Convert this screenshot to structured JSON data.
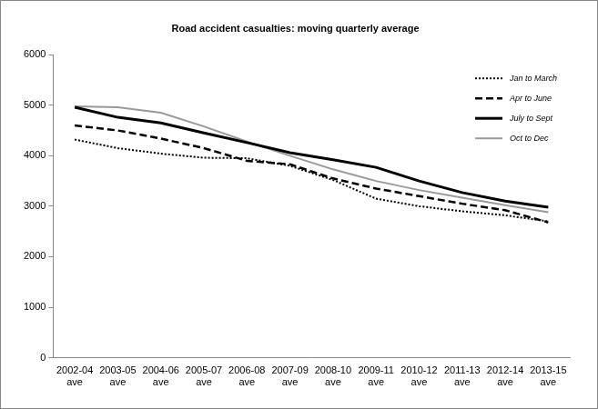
{
  "chart_data": {
    "type": "line",
    "title": "Road accident casualties: moving quarterly average",
    "categories": [
      "2002-04 ave",
      "2003-05 ave",
      "2004-06 ave",
      "2005-07 ave",
      "2006-08 ave",
      "2007-09 ave",
      "2008-10 ave",
      "2009-11 ave",
      "2010-12 ave",
      "2011-13 ave",
      "2012-14 ave",
      "2013-15 ave"
    ],
    "series": [
      {
        "name": "Jan to March",
        "color": "#000000",
        "line_style": "dotted",
        "values": [
          4320,
          4150,
          4040,
          3960,
          3950,
          3800,
          3520,
          3150,
          3000,
          2900,
          2820,
          2700
        ]
      },
      {
        "name": "Apr to June",
        "color": "#000000",
        "line_style": "dashed",
        "values": [
          4600,
          4500,
          4340,
          4150,
          3900,
          3830,
          3550,
          3350,
          3200,
          3050,
          2920,
          2680
        ]
      },
      {
        "name": "July to Sept",
        "color": "#000000",
        "line_style": "solid",
        "values": [
          4960,
          4760,
          4650,
          4450,
          4260,
          4060,
          3920,
          3770,
          3500,
          3270,
          3100,
          2980
        ]
      },
      {
        "name": "Oct to Dec",
        "color": "#999999",
        "line_style": "solid",
        "values": [
          4980,
          4960,
          4850,
          4580,
          4280,
          4000,
          3730,
          3500,
          3320,
          3170,
          3020,
          2880
        ]
      }
    ],
    "ylim": [
      0,
      6000
    ],
    "yticks": [
      0,
      1000,
      2000,
      3000,
      4000,
      5000,
      6000
    ],
    "grid": false,
    "legend": "upper right"
  }
}
